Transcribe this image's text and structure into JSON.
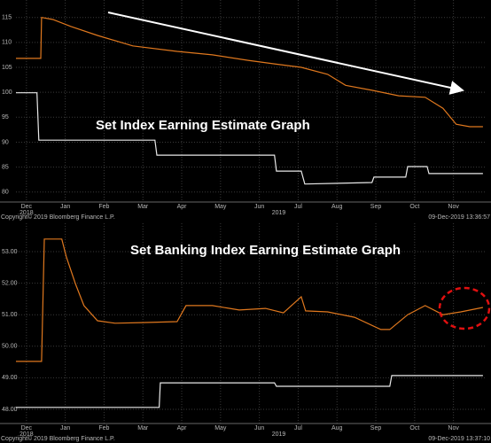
{
  "chart_data": [
    {
      "type": "line",
      "title": "Set Index Earning Estimate Graph",
      "xlim": [
        -0.27,
        11.83
      ],
      "xticks": [
        {
          "value": 0,
          "label": "Dec"
        },
        {
          "value": 1,
          "label": "Jan"
        },
        {
          "value": 2,
          "label": "Feb"
        },
        {
          "value": 3,
          "label": "Mar"
        },
        {
          "value": 4,
          "label": "Apr"
        },
        {
          "value": 5,
          "label": "May"
        },
        {
          "value": 6,
          "label": "Jun"
        },
        {
          "value": 7,
          "label": "Jul"
        },
        {
          "value": 8,
          "label": "Aug"
        },
        {
          "value": 9,
          "label": "Sep"
        },
        {
          "value": 10,
          "label": "Oct"
        },
        {
          "value": 11,
          "label": "Nov"
        }
      ],
      "x_year_labels": [
        {
          "value": 0,
          "label": "2018"
        },
        {
          "value": 6.5,
          "label": "2019"
        }
      ],
      "ylim": [
        78,
        118.5
      ],
      "yticks": [
        80,
        85,
        90,
        95,
        100,
        105,
        110,
        115
      ],
      "grid": true,
      "series": [
        {
          "color": "#e0781e",
          "x": [
            -0.27,
            0.37,
            0.39,
            0.68,
            1.14,
            1.83,
            2.74,
            3.88,
            4.79,
            5.71,
            6.39,
            7.08,
            7.76,
            8.22,
            8.9,
            9.59,
            10.27,
            10.73,
            11.07,
            11.42,
            11.76
          ],
          "values": [
            106.8,
            106.8,
            115,
            114.6,
            113.2,
            111.4,
            109.3,
            108.2,
            107.5,
            106.4,
            105.7,
            105,
            103.6,
            101.4,
            100.4,
            99.3,
            99,
            96.8,
            93.6,
            93.1,
            93.1
          ]
        },
        {
          "color": "#e8e8e8",
          "x": [
            -0.27,
            0.27,
            0.32,
            3.31,
            3.36,
            6.39,
            6.44,
            7.08,
            7.17,
            8.9,
            8.95,
            9.77,
            9.82,
            10.32,
            10.37,
            11.76
          ],
          "values": [
            99.9,
            99.9,
            90.4,
            90.4,
            87.4,
            87.4,
            84.2,
            84.2,
            81.6,
            81.9,
            83.0,
            83.0,
            85.1,
            85.1,
            83.7,
            83.7
          ]
        }
      ],
      "footer_left": "Copyright© 2019 Bloomberg Finance L.P.",
      "footer_right": "09-Dec-2019 13:36:57"
    },
    {
      "type": "line",
      "title": "Set Banking Index Earning Estimate Graph",
      "xlim": [
        -0.27,
        11.83
      ],
      "xticks": [
        {
          "value": 0,
          "label": "Dec"
        },
        {
          "value": 1,
          "label": "Jan"
        },
        {
          "value": 2,
          "label": "Feb"
        },
        {
          "value": 3,
          "label": "Mar"
        },
        {
          "value": 4,
          "label": "Apr"
        },
        {
          "value": 5,
          "label": "May"
        },
        {
          "value": 6,
          "label": "Jun"
        },
        {
          "value": 7,
          "label": "Jul"
        },
        {
          "value": 8,
          "label": "Aug"
        },
        {
          "value": 9,
          "label": "Sep"
        },
        {
          "value": 10,
          "label": "Oct"
        },
        {
          "value": 11,
          "label": "Nov"
        }
      ],
      "x_year_labels": [
        {
          "value": 0,
          "label": "2018"
        },
        {
          "value": 6.5,
          "label": "2019"
        }
      ],
      "ylim": [
        47.55,
        53.9
      ],
      "yticks": [
        {
          "value": 48,
          "label": "48.00"
        },
        {
          "value": 49,
          "label": "49.00"
        },
        {
          "value": 50,
          "label": "50.00"
        },
        {
          "value": 51,
          "label": "51.00"
        },
        {
          "value": 52,
          "label": "52.00"
        },
        {
          "value": 53,
          "label": "53.00"
        }
      ],
      "grid": true,
      "series": [
        {
          "color": "#e0781e",
          "x": [
            -0.27,
            0.39,
            0.46,
            0.91,
            1.03,
            1.26,
            1.48,
            1.83,
            2.28,
            2.97,
            3.88,
            4.11,
            4.79,
            5.48,
            6.16,
            6.62,
            7.08,
            7.19,
            7.76,
            8.45,
            9.13,
            9.36,
            9.82,
            10.27,
            10.73,
            11.19,
            11.76
          ],
          "values": [
            49.52,
            49.52,
            53.4,
            53.4,
            52.83,
            51.99,
            51.29,
            50.81,
            50.73,
            50.75,
            50.78,
            51.29,
            51.29,
            51.15,
            51.2,
            51.06,
            51.57,
            51.12,
            51.09,
            50.92,
            50.53,
            50.53,
            51.0,
            51.29,
            51.0,
            51.09,
            51.23
          ]
        },
        {
          "color": "#e8e8e8",
          "x": [
            -0.27,
            3.42,
            3.45,
            6.39,
            6.44,
            9.36,
            9.41,
            11.76
          ],
          "values": [
            48.06,
            48.06,
            48.84,
            48.84,
            48.73,
            48.73,
            49.07,
            49.07
          ]
        }
      ],
      "footer_left": "Copyright© 2019 Bloomberg Finance L.P.",
      "footer_right": "09-Dec-2019 13:37:10"
    }
  ]
}
